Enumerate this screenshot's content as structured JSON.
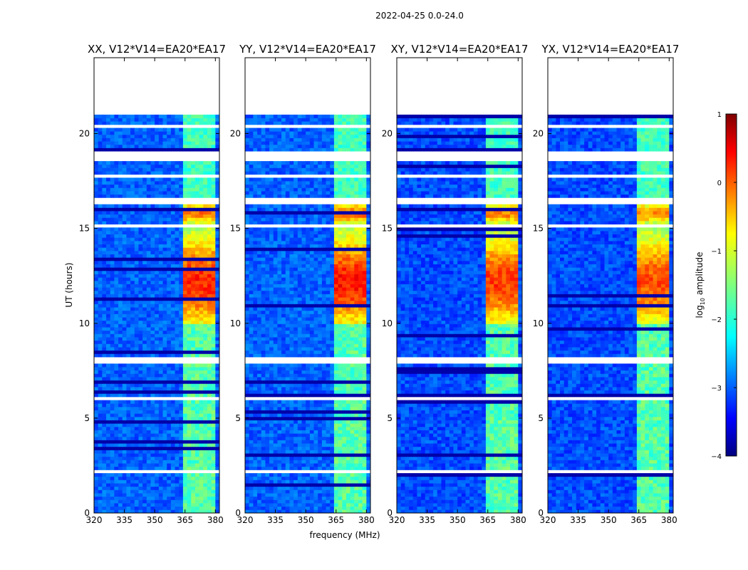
{
  "chart_data": {
    "type": "heatmap",
    "suptitle": "2022-04-25 0.0-24.0",
    "xlabel": "frequency (MHz)",
    "ylabel": "UT (hours)",
    "xlim": [
      320,
      382
    ],
    "ylim": [
      0,
      24
    ],
    "x_ticks": [
      "320",
      "335",
      "350",
      "365",
      "380"
    ],
    "x_tick_values": [
      320,
      335,
      350,
      365,
      380
    ],
    "y_ticks": [
      "0",
      "5",
      "10",
      "15",
      "20"
    ],
    "y_tick_values": [
      0,
      5,
      10,
      15,
      20
    ],
    "colorbar": {
      "label": "log10 amplitude",
      "label_main": "log",
      "label_sub": "10",
      "label_rest": " amplitude",
      "range": [
        -4,
        1
      ],
      "ticks": [
        "1",
        "0",
        "−1",
        "−2",
        "−3",
        "−4"
      ],
      "tick_values": [
        1,
        0,
        -1,
        -2,
        -3,
        -4
      ],
      "colormap": "jet"
    },
    "data_end_hour": 21.0,
    "gaps_hours": [
      [
        18.6,
        19.0
      ],
      [
        17.6,
        17.9
      ],
      [
        16.3,
        16.6
      ],
      [
        15.0,
        15.2
      ],
      [
        7.9,
        8.2
      ],
      [
        6.0,
        6.2
      ],
      [
        2.1,
        2.3
      ],
      [
        20.3,
        20.45
      ]
    ],
    "band_mhz": [
      364,
      380
    ],
    "panels": [
      {
        "title": "XX, V12*V14=EA20*EA17",
        "background_log": -2.9,
        "band_peak_log": 0.2
      },
      {
        "title": "YY, V12*V14=EA20*EA17",
        "background_log": -2.9,
        "band_peak_log": 0.3
      },
      {
        "title": "XY, V12*V14=EA20*EA17",
        "background_log": -3.0,
        "band_peak_log": 0.1
      },
      {
        "title": "YX, V12*V14=EA20*EA17",
        "background_log": -3.0,
        "band_peak_log": 0.0
      }
    ]
  },
  "colors": {
    "jet": [
      "#00007f",
      "#0000ff",
      "#007fff",
      "#00ffff",
      "#7fff7f",
      "#ffff00",
      "#ff7f00",
      "#ff0000",
      "#7f0000"
    ]
  }
}
